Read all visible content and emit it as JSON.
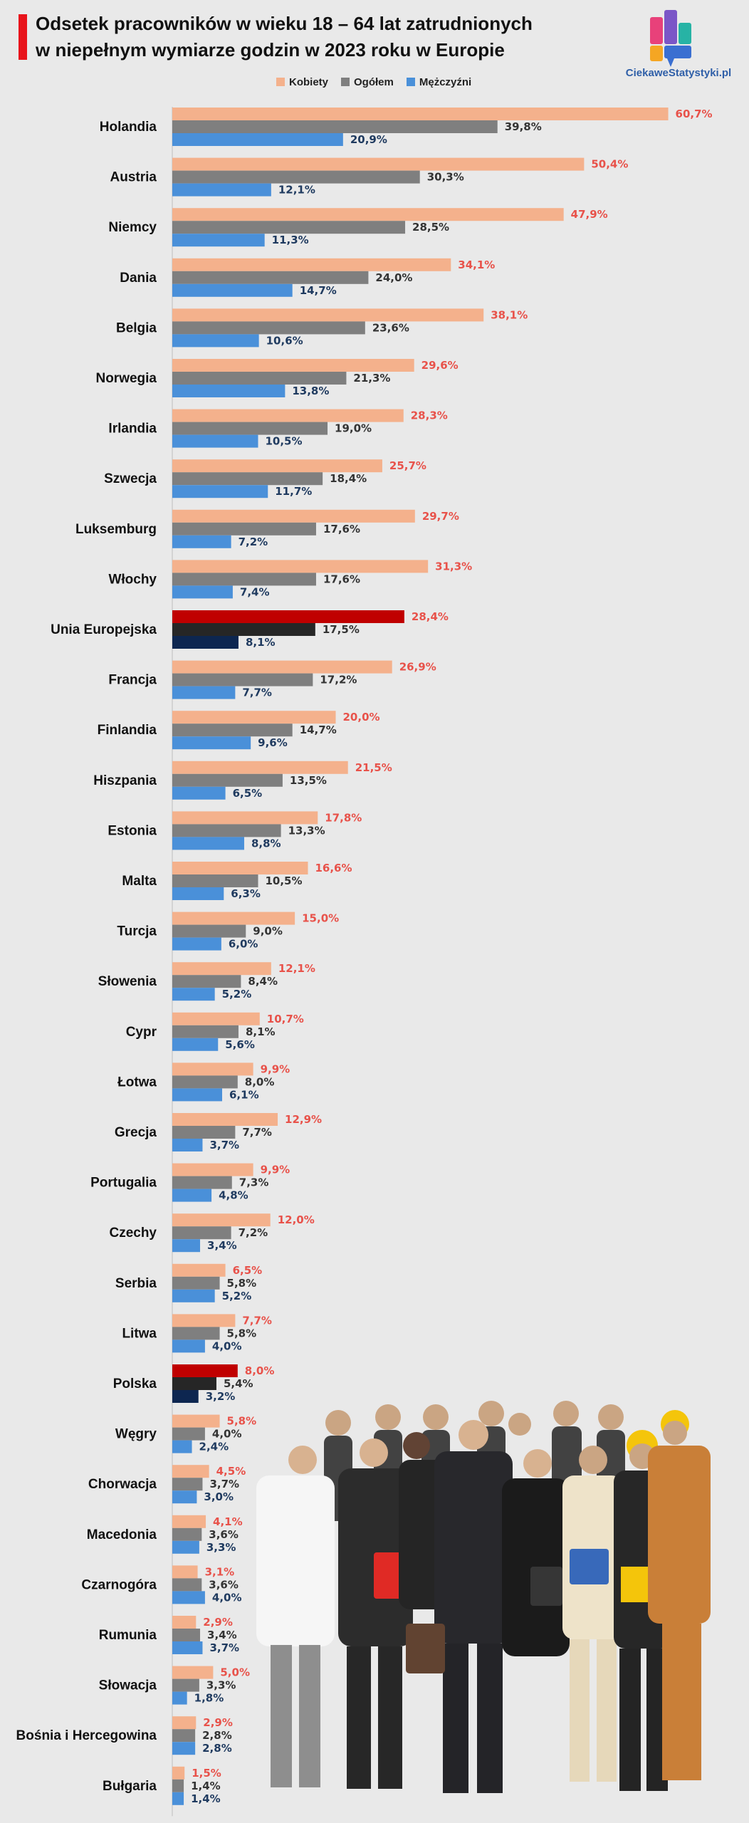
{
  "title": {
    "line1": "Odsetek pracowników w wieku 18 – 64 lat zatrudnionych",
    "line2": "w niepełnym wymiarze godzin w 2023 roku w Europie"
  },
  "brand": {
    "name": "CiekaweStatystyki.pl"
  },
  "colors": {
    "kobiety": "#f4b18c",
    "ogolem": "#7f7f7f",
    "mezczyzni": "#4a90d9",
    "kobiety_label": "#e8524a",
    "ogolem_label": "#333333",
    "mezczyzni_label": "#1f3a5f",
    "highlight_kobiety": "#c00000",
    "highlight_ogolem": "#262626",
    "highlight_mezczyzni": "#0d2650",
    "title_accent": "#e8141b"
  },
  "chart_data": {
    "type": "bar",
    "orientation": "horizontal",
    "title": "Odsetek pracowników w wieku 18 – 64 lat zatrudnionych w niepełnym wymiarze godzin w 2023 roku w Europie",
    "legend": [
      "Kobiety",
      "Ogółem",
      "Mężczyźni"
    ],
    "legend_placement": "top",
    "grid": false,
    "categories": [
      "Holandia",
      "Austria",
      "Niemcy",
      "Dania",
      "Belgia",
      "Norwegia",
      "Irlandia",
      "Szwecja",
      "Luksemburg",
      "Włochy",
      "Unia Europejska",
      "Francja",
      "Finlandia",
      "Hiszpania",
      "Estonia",
      "Malta",
      "Turcja",
      "Słowenia",
      "Cypr",
      "Łotwa",
      "Grecja",
      "Portugalia",
      "Czechy",
      "Serbia",
      "Litwa",
      "Polska",
      "Węgry",
      "Chorwacja",
      "Macedonia",
      "Czarnogóra",
      "Rumunia",
      "Słowacja",
      "Bośnia i Hercegowina",
      "Bułgaria"
    ],
    "highlighted": [
      "Unia Europejska",
      "Polska"
    ],
    "series": [
      {
        "name": "Kobiety",
        "values": [
          60.7,
          50.4,
          47.9,
          34.1,
          38.1,
          29.6,
          28.3,
          25.7,
          29.7,
          31.3,
          28.4,
          26.9,
          20.0,
          21.5,
          17.8,
          16.6,
          15.0,
          12.1,
          10.7,
          9.9,
          12.9,
          9.9,
          12.0,
          6.5,
          7.7,
          8.0,
          5.8,
          4.5,
          4.1,
          3.1,
          2.9,
          5.0,
          2.9,
          1.5
        ],
        "labels": [
          "60,7%",
          "50,4%",
          "47,9%",
          "34,1%",
          "38,1%",
          "29,6%",
          "28,3%",
          "25,7%",
          "29,7%",
          "31,3%",
          "28,4%",
          "26,9%",
          "20,0%",
          "21,5%",
          "17,8%",
          "16,6%",
          "15,0%",
          "12,1%",
          "10,7%",
          "9,9%",
          "12,9%",
          "9,9%",
          "12,0%",
          "6,5%",
          "7,7%",
          "8,0%",
          "5,8%",
          "4,5%",
          "4,1%",
          "3,1%",
          "2,9%",
          "5,0%",
          "2,9%",
          "1,5%"
        ]
      },
      {
        "name": "Ogółem",
        "values": [
          39.8,
          30.3,
          28.5,
          24.0,
          23.6,
          21.3,
          19.0,
          18.4,
          17.6,
          17.6,
          17.5,
          17.2,
          14.7,
          13.5,
          13.3,
          10.5,
          9.0,
          8.4,
          8.1,
          8.0,
          7.7,
          7.3,
          7.2,
          5.8,
          5.8,
          5.4,
          4.0,
          3.7,
          3.6,
          3.6,
          3.4,
          3.3,
          2.8,
          1.4
        ],
        "labels": [
          "39,8%",
          "30,3%",
          "28,5%",
          "24,0%",
          "23,6%",
          "21,3%",
          "19,0%",
          "18,4%",
          "17,6%",
          "17,6%",
          "17,5%",
          "17,2%",
          "14,7%",
          "13,5%",
          "13,3%",
          "10,5%",
          "9,0%",
          "8,4%",
          "8,1%",
          "8,0%",
          "7,7%",
          "7,3%",
          "7,2%",
          "5,8%",
          "5,8%",
          "5,4%",
          "4,0%",
          "3,7%",
          "3,6%",
          "3,6%",
          "3,4%",
          "3,3%",
          "2,8%",
          "1,4%"
        ]
      },
      {
        "name": "Mężczyźni",
        "values": [
          20.9,
          12.1,
          11.3,
          14.7,
          10.6,
          13.8,
          10.5,
          11.7,
          7.2,
          7.4,
          8.1,
          7.7,
          9.6,
          6.5,
          8.8,
          6.3,
          6.0,
          5.2,
          5.6,
          6.1,
          3.7,
          4.8,
          3.4,
          5.2,
          4.0,
          3.2,
          2.4,
          3.0,
          3.3,
          4.0,
          3.7,
          1.8,
          2.8,
          1.4
        ],
        "labels": [
          "20,9%",
          "12,1%",
          "11,3%",
          "14,7%",
          "10,6%",
          "13,8%",
          "10,5%",
          "11,7%",
          "7,2%",
          "7,4%",
          "8,1%",
          "7,7%",
          "9,6%",
          "6,5%",
          "8,8%",
          "6,3%",
          "6,0%",
          "5,2%",
          "5,6%",
          "6,1%",
          "3,7%",
          "4,8%",
          "3,4%",
          "5,2%",
          "4,0%",
          "3,2%",
          "2,4%",
          "3,0%",
          "3,3%",
          "4,0%",
          "3,7%",
          "1,8%",
          "2,8%",
          "1,4%"
        ]
      }
    ]
  }
}
